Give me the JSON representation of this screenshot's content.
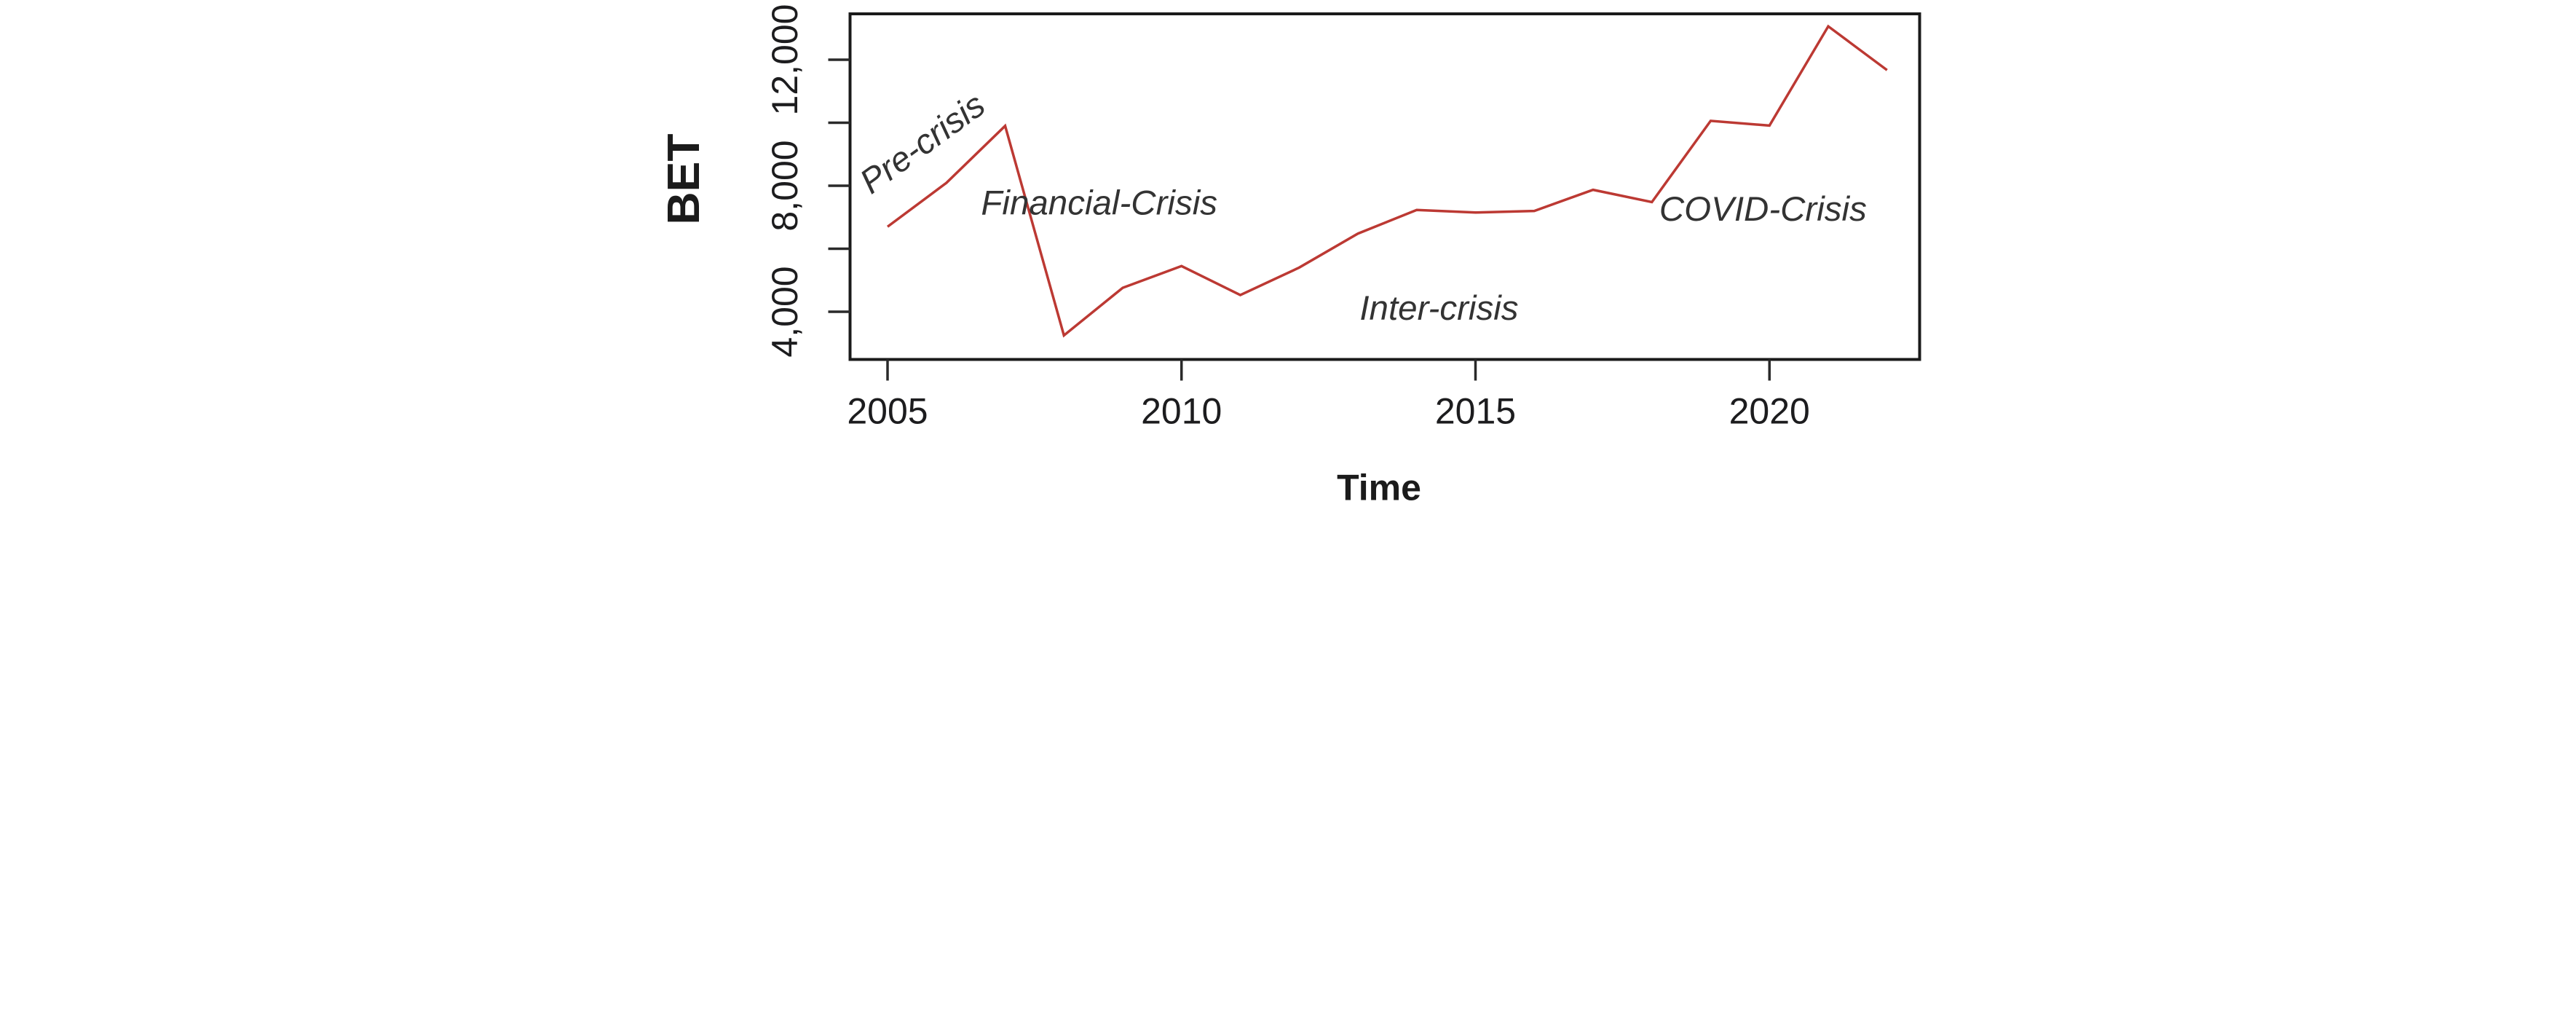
{
  "chart_data": {
    "type": "line",
    "title": "",
    "xlabel": "Time",
    "ylabel": "BET",
    "x": [
      2005,
      2006,
      2007,
      2008,
      2009,
      2010,
      2011,
      2012,
      2013,
      2014,
      2015,
      2016,
      2017,
      2018,
      2019,
      2020,
      2021,
      2022
    ],
    "series": [
      {
        "name": "BET",
        "values": [
          6700,
          8090,
          9900,
          3250,
          4760,
          5450,
          4530,
          5400,
          6480,
          7230,
          7150,
          7200,
          7870,
          7480,
          10060,
          9910,
          13060,
          11670
        ]
      }
    ],
    "line_color": "#bc3933",
    "grid": false,
    "legend": "none",
    "xlim": [
      2004.3,
      2022.6
    ],
    "ylim": [
      2500,
      13450
    ],
    "x_axis": {
      "ticks": [
        {
          "value": 2005,
          "label": "2005"
        },
        {
          "value": 2010,
          "label": "2010"
        },
        {
          "value": 2015,
          "label": "2015"
        },
        {
          "value": 2020,
          "label": "2020"
        }
      ]
    },
    "y_axis": {
      "tick_values": [
        12000,
        10000,
        8000,
        6000,
        4000
      ],
      "labeled_ticks": [
        {
          "value": 12000,
          "label": "12,000"
        },
        {
          "value": 8000,
          "label": "8,000"
        },
        {
          "value": 4000,
          "label": "4,000"
        }
      ],
      "label_rotation": -90
    },
    "annotations": [
      {
        "label": "Pre-crisis",
        "x_year": 2005.71,
        "y_value": 9050,
        "rotation": -36
      },
      {
        "label": "Financial-Crisis",
        "x_year": 2008.6,
        "y_value": 7090,
        "rotation": 0
      },
      {
        "label": "Inter-crisis",
        "x_year": 2014.38,
        "y_value": 3750,
        "rotation": 0
      },
      {
        "label": "COVID-Crisis",
        "x_year": 2019.89,
        "y_value": 6890,
        "rotation": 0
      }
    ]
  }
}
